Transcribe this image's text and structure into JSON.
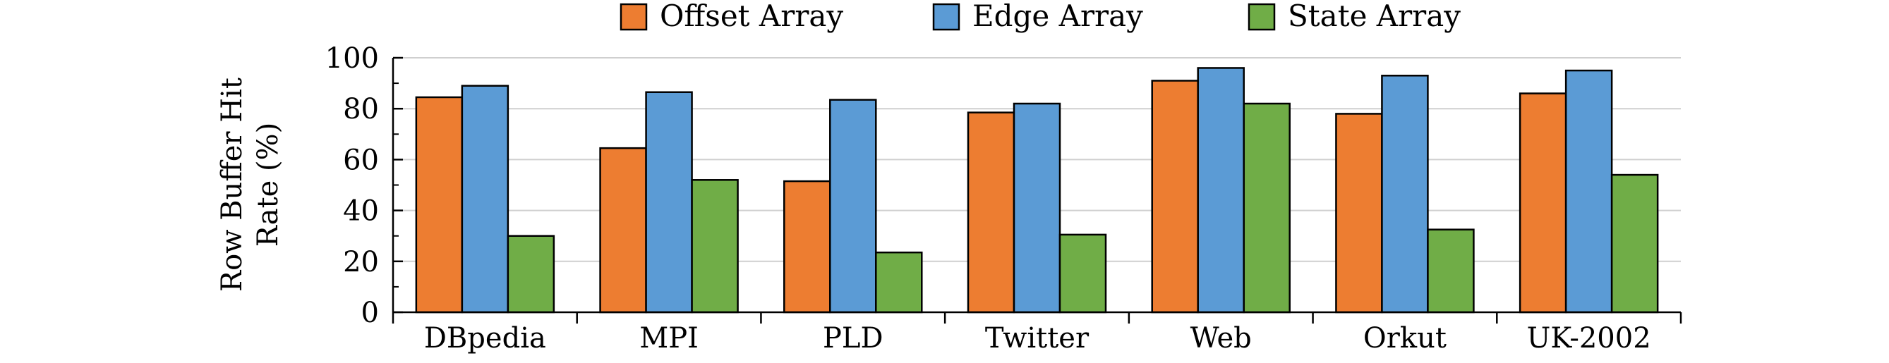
{
  "chart_data": {
    "type": "bar",
    "categories": [
      "DBpedia",
      "MPI",
      "PLD",
      "Twitter",
      "Web",
      "Orkut",
      "UK-2002"
    ],
    "series": [
      {
        "name": "Offset Array",
        "color": "#ed7d31",
        "values": [
          84.5,
          64.5,
          51.5,
          78.5,
          91,
          78,
          86
        ]
      },
      {
        "name": "Edge Array",
        "color": "#5b9bd5",
        "values": [
          89,
          86.5,
          83.5,
          82,
          96,
          93,
          95
        ]
      },
      {
        "name": "State Array",
        "color": "#70ad47",
        "values": [
          30,
          52,
          23.5,
          30.5,
          82,
          32.5,
          54
        ]
      }
    ],
    "ylabel_lines": [
      "Row Buffer Hit",
      "Rate (%)"
    ],
    "ylim": [
      0,
      100
    ],
    "yticks": [
      "0",
      "20",
      "40",
      "60",
      "80",
      "100"
    ],
    "grid": true,
    "legend_position": "top"
  }
}
